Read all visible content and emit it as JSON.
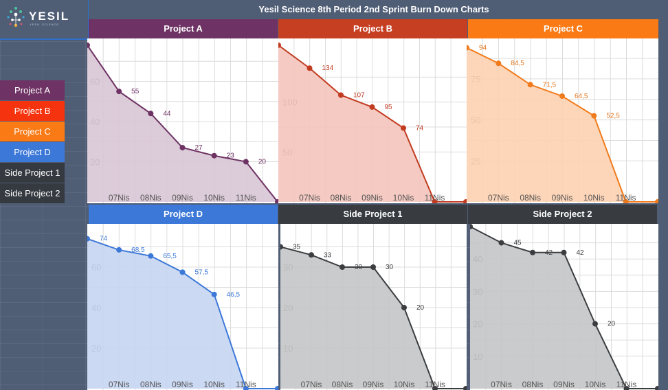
{
  "logo": {
    "name": "YESIL",
    "tagline": "YESIL SCIENCE"
  },
  "title": "Yesil Science 8th Period 2nd Sprint Burn Down Charts",
  "legend": [
    {
      "label": "Project A",
      "color": "#6e3364"
    },
    {
      "label": "Project B",
      "color": "#f5330f"
    },
    {
      "label": "Project C",
      "color": "#fa7a16"
    },
    {
      "label": "Project D",
      "color": "#3c78d8"
    },
    {
      "label": "Side Project 1",
      "color": "#353a40"
    },
    {
      "label": "Side Project 2",
      "color": "#353a40"
    }
  ],
  "chart_data": [
    {
      "type": "area",
      "title": "Project A",
      "header_color": "#6e3364",
      "line_color": "#6e3364",
      "fill_color": "#d8c5d4",
      "label_color": "#6e3364",
      "x": [
        "",
        "07Nis",
        "08Nis",
        "09Nis",
        "10Nis",
        "11Nis",
        ""
      ],
      "values": [
        78,
        55,
        44,
        27,
        23,
        20,
        0
      ],
      "labels": [
        "",
        "55",
        "44",
        "27",
        "23",
        "20",
        ""
      ],
      "yticks": [
        20,
        40,
        60
      ],
      "ylim": [
        0,
        80
      ]
    },
    {
      "type": "area",
      "title": "Project B",
      "header_color": "#c63f23",
      "line_color": "#c13b20",
      "fill_color": "#f3c4bb",
      "label_color": "#c13b20",
      "x": [
        "",
        "07Nis",
        "08Nis",
        "09Nis",
        "10Nis",
        "11Nis",
        ""
      ],
      "values": [
        157,
        134,
        107,
        95,
        74,
        0,
        0
      ],
      "labels": [
        "",
        "134",
        "107",
        "95",
        "74",
        "",
        ""
      ],
      "yticks": [
        50,
        100
      ],
      "ylim": [
        0,
        161
      ]
    },
    {
      "type": "area",
      "title": "Project C",
      "header_color": "#fa7a16",
      "line_color": "#f07b1c",
      "fill_color": "#fdd0b0",
      "label_color": "#e4741a",
      "x": [
        "",
        "07Nis",
        "08Nis",
        "09Nis",
        "10Nis",
        "11Nis",
        ""
      ],
      "values": [
        94,
        84.5,
        71.5,
        64.5,
        52.5,
        0,
        0
      ],
      "labels": [
        "94",
        "84,5",
        "71,5",
        "64,5",
        "52,5",
        "",
        ""
      ],
      "yticks": [
        25,
        50,
        75
      ],
      "ylim": [
        0,
        98
      ]
    },
    {
      "type": "area",
      "title": "Project D",
      "header_color": "#3c78d8",
      "line_color": "#3c78d8",
      "fill_color": "#c5d5f2",
      "label_color": "#3c78d8",
      "x": [
        "",
        "07Nis",
        "08Nis",
        "09Nis",
        "10Nis",
        "11Nis",
        ""
      ],
      "values": [
        74,
        68.5,
        65.5,
        57.5,
        46.5,
        0,
        0
      ],
      "labels": [
        "74",
        "68,5",
        "65,5",
        "57,5",
        "46,5",
        "",
        ""
      ],
      "yticks": [
        20,
        40,
        60
      ],
      "ylim": [
        0,
        80
      ]
    },
    {
      "type": "area",
      "title": "Side Project 1",
      "header_color": "#383c41",
      "line_color": "#3b3d40",
      "fill_color": "#c4c5c7",
      "label_color": "#3b3d40",
      "x": [
        "",
        "07Nis",
        "08Nis",
        "09Nis",
        "10Nis",
        "11Nis",
        ""
      ],
      "values": [
        35,
        33,
        30,
        30,
        20,
        0,
        0
      ],
      "labels": [
        "35",
        "33",
        "30",
        "30",
        "20",
        "",
        ""
      ],
      "yticks": [
        10,
        20,
        30
      ],
      "ylim": [
        0,
        40
      ]
    },
    {
      "type": "area",
      "title": "Side Project 2",
      "header_color": "#383c41",
      "line_color": "#3b3d40",
      "fill_color": "#c4c5c7",
      "label_color": "#3b3d40",
      "x": [
        "",
        "07Nis",
        "08Nis",
        "09Nis",
        "10Nis",
        "11Nis",
        ""
      ],
      "values": [
        50,
        45,
        42,
        42,
        20,
        0,
        0
      ],
      "labels": [
        "",
        "45",
        "42",
        "42",
        "20",
        "",
        ""
      ],
      "yticks": [
        10,
        20,
        30,
        40
      ],
      "ylim": [
        0,
        50
      ]
    }
  ]
}
